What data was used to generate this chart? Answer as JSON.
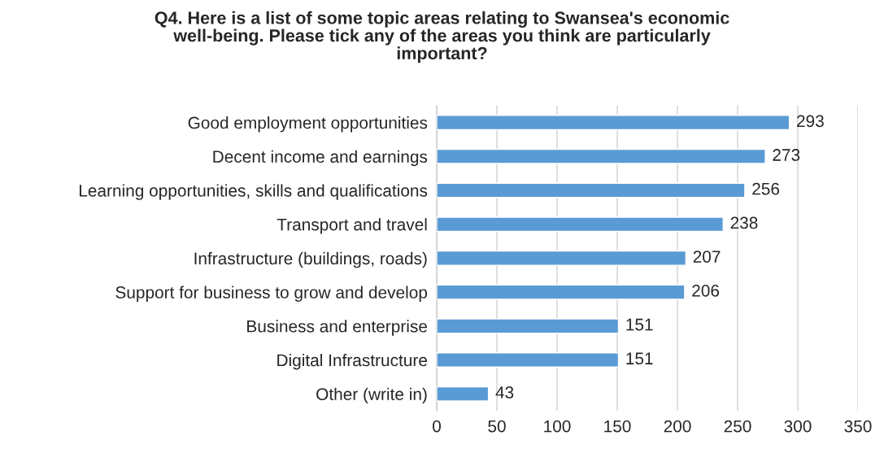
{
  "chart_data": {
    "type": "bar",
    "orientation": "horizontal",
    "title": "Q4. Here is a list of some topic areas relating to Swansea's economic\nwell-being. Please tick any of the areas you think are particularly\nimportant?",
    "categories": [
      "Good employment opportunities",
      "Decent income and earnings",
      "Learning opportunities, skills and qualifications",
      "Transport and travel",
      "Infrastructure (buildings, roads)",
      "Support for business to grow and develop",
      "Business and enterprise",
      "Digital Infrastructure",
      "Other (write in)"
    ],
    "values": [
      293,
      273,
      256,
      238,
      207,
      206,
      151,
      151,
      43
    ],
    "color": "#5b9bd5",
    "xlim": [
      0,
      350
    ],
    "xticks": [
      0,
      50,
      100,
      150,
      200,
      250,
      300,
      350
    ],
    "grid": "x",
    "data_labels": true
  }
}
